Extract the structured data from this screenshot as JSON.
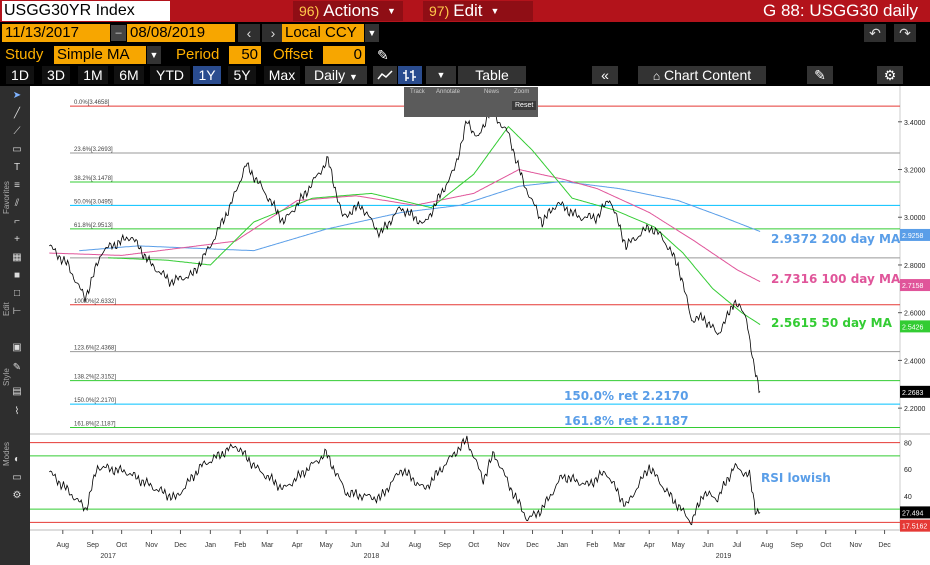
{
  "titlebar": {
    "ticker": "USGG30YR Index",
    "actions_num": "96)",
    "actions_label": "Actions",
    "edit_num": "97)",
    "edit_label": "Edit",
    "right_title": "G 88: USGG30 daily"
  },
  "daterow": {
    "start_date": "11/13/2017",
    "end_date": "08/08/2019",
    "currency": "Local CCY"
  },
  "studyrow": {
    "study_label": "Study",
    "study_value": "Simple MA",
    "period_label": "Period",
    "period_value": "50",
    "offset_label": "Offset",
    "offset_value": "0"
  },
  "rangebar": {
    "ranges": [
      "1D",
      "3D",
      "1M",
      "6M",
      "YTD",
      "1Y",
      "5Y",
      "Max"
    ],
    "selected": "1Y",
    "frequency": "Daily",
    "table_label": "Table",
    "chart_content_label": "Chart Content"
  },
  "sidebar": {
    "favorites_label": "Favorites",
    "edit_label": "Edit",
    "style_label": "Style",
    "modes_label": "Modes"
  },
  "popup": {
    "track": "Track",
    "annotate": "Annotate",
    "news": "News",
    "zoom": "Zoom",
    "reset": "Reset"
  },
  "annotations": {
    "ma200": "2.9372 200 day MA",
    "ma100": "2.7316 100 day MA",
    "ma50": "2.5615 50 day  MA",
    "fib150": "150.0% ret 2.2170",
    "fib1618": "161.8% ret 2.1187",
    "rsi": "RSI lowish"
  },
  "colors": {
    "price": "#000000",
    "ma50": "#33cc33",
    "ma100": "#e0559a",
    "ma200": "#5a9ee8",
    "fib_red": "#e53935",
    "fib_green": "#33cc33",
    "fib_cyan": "#00c0ff",
    "fib_gray": "#999999",
    "titlebar": "#b3131b",
    "field": "#f7a600"
  },
  "chart_data": [
    {
      "type": "line",
      "ylim": [
        2.1,
        3.55
      ],
      "yticks": [
        "3.4000",
        "3.2000",
        "3.0000",
        "2.8000",
        "2.6000",
        "2.4000",
        "2.2000"
      ],
      "price_anchors": [
        [
          "2017-08-01",
          2.88
        ],
        [
          "2017-08-20",
          2.8
        ],
        [
          "2017-09-07",
          2.66
        ],
        [
          "2017-09-25",
          2.86
        ],
        [
          "2017-10-25",
          2.92
        ],
        [
          "2017-11-15",
          2.8
        ],
        [
          "2017-12-05",
          2.73
        ],
        [
          "2017-12-28",
          2.76
        ],
        [
          "2018-01-15",
          2.88
        ],
        [
          "2018-02-05",
          3.05
        ],
        [
          "2018-02-21",
          3.22
        ],
        [
          "2018-03-10",
          3.12
        ],
        [
          "2018-04-01",
          2.98
        ],
        [
          "2018-04-20",
          3.08
        ],
        [
          "2018-05-17",
          3.24
        ],
        [
          "2018-06-01",
          3.0
        ],
        [
          "2018-06-20",
          3.05
        ],
        [
          "2018-07-10",
          2.93
        ],
        [
          "2018-07-31",
          3.04
        ],
        [
          "2018-08-25",
          2.97
        ],
        [
          "2018-09-25",
          3.2
        ],
        [
          "2018-10-08",
          3.4
        ],
        [
          "2018-10-20",
          3.33
        ],
        [
          "2018-11-01",
          3.45
        ],
        [
          "2018-11-20",
          3.35
        ],
        [
          "2018-12-05",
          3.15
        ],
        [
          "2018-12-25",
          2.98
        ],
        [
          "2019-01-10",
          3.06
        ],
        [
          "2019-02-01",
          3.0
        ],
        [
          "2019-02-20",
          3.0
        ],
        [
          "2019-03-05",
          3.08
        ],
        [
          "2019-03-22",
          2.88
        ],
        [
          "2019-04-15",
          2.96
        ],
        [
          "2019-04-28",
          2.92
        ],
        [
          "2019-05-15",
          2.8
        ],
        [
          "2019-05-29",
          2.57
        ],
        [
          "2019-06-10",
          2.58
        ],
        [
          "2019-06-25",
          2.51
        ],
        [
          "2019-07-05",
          2.58
        ],
        [
          "2019-07-12",
          2.65
        ],
        [
          "2019-07-25",
          2.58
        ],
        [
          "2019-08-01",
          2.38
        ],
        [
          "2019-08-08",
          2.27
        ]
      ],
      "ma50_anchors": [
        [
          "2017-10-01",
          2.83
        ],
        [
          "2017-12-01",
          2.82
        ],
        [
          "2018-01-15",
          2.8
        ],
        [
          "2018-03-01",
          2.98
        ],
        [
          "2018-05-01",
          3.08
        ],
        [
          "2018-07-01",
          3.1
        ],
        [
          "2018-09-01",
          3.04
        ],
        [
          "2018-10-15",
          3.18
        ],
        [
          "2018-11-20",
          3.38
        ],
        [
          "2018-12-15",
          3.28
        ],
        [
          "2019-01-25",
          3.08
        ],
        [
          "2019-03-10",
          3.03
        ],
        [
          "2019-04-20",
          2.96
        ],
        [
          "2019-05-20",
          2.85
        ],
        [
          "2019-06-20",
          2.7
        ],
        [
          "2019-07-20",
          2.6
        ],
        [
          "2019-08-08",
          2.55
        ]
      ],
      "ma100_anchors": [
        [
          "2017-08-01",
          2.85
        ],
        [
          "2017-10-15",
          2.84
        ],
        [
          "2018-02-10",
          2.9
        ],
        [
          "2018-04-15",
          3.07
        ],
        [
          "2018-06-15",
          3.09
        ],
        [
          "2018-08-15",
          3.05
        ],
        [
          "2018-10-15",
          3.1
        ],
        [
          "2018-12-01",
          3.2
        ],
        [
          "2019-01-15",
          3.16
        ],
        [
          "2019-02-20",
          3.12
        ],
        [
          "2019-04-15",
          3.02
        ],
        [
          "2019-06-01",
          2.9
        ],
        [
          "2019-07-15",
          2.78
        ],
        [
          "2019-08-08",
          2.73
        ]
      ],
      "ma200_anchors": [
        [
          "2017-09-01",
          2.86
        ],
        [
          "2017-11-01",
          2.88
        ],
        [
          "2018-03-01",
          2.86
        ],
        [
          "2018-05-15",
          2.95
        ],
        [
          "2018-08-01",
          3.02
        ],
        [
          "2018-10-01",
          3.05
        ],
        [
          "2018-12-01",
          3.13
        ],
        [
          "2019-01-15",
          3.15
        ],
        [
          "2019-03-15",
          3.12
        ],
        [
          "2019-05-15",
          3.07
        ],
        [
          "2019-07-01",
          3.0
        ],
        [
          "2019-08-08",
          2.94
        ]
      ],
      "fib_levels": [
        {
          "label": "0.0%[3.4658]",
          "value": 3.4658,
          "color": "red"
        },
        {
          "label": "23.6%[3.2693]",
          "value": 3.2693,
          "color": "gray"
        },
        {
          "label": "38.2%[3.1478]",
          "value": 3.1478,
          "color": "green"
        },
        {
          "label": "50.0%[3.0495]",
          "value": 3.0495,
          "color": "cyan"
        },
        {
          "label": "61.8%[2.9513]",
          "value": 2.9513,
          "color": "green"
        },
        {
          "label": "76.4%",
          "value": 2.8297,
          "color": "gray"
        },
        {
          "label": "100.0%[2.6332]",
          "value": 2.6332,
          "color": "red"
        },
        {
          "label": "123.6%[2.4368]",
          "value": 2.4368,
          "color": "gray"
        },
        {
          "label": "138.2%[2.3152]",
          "value": 2.3152,
          "color": "green"
        },
        {
          "label": "150.0%[2.2170]",
          "value": 2.217,
          "color": "cyan"
        },
        {
          "label": "161.8%[2.1187]",
          "value": 2.1187,
          "color": "green"
        }
      ],
      "right_badges": [
        {
          "value": "2.9258",
          "color": "#5a9ee8"
        },
        {
          "value": "2.7158",
          "color": "#e0559a"
        },
        {
          "value": "2.5426",
          "color": "#33cc33"
        },
        {
          "value": "2.2683",
          "color": "#000000"
        }
      ]
    },
    {
      "type": "line",
      "name": "RSI",
      "ylim": [
        15,
        85
      ],
      "yticks": [
        "80",
        "60",
        "40"
      ],
      "levels": [
        80,
        70,
        30,
        20
      ],
      "anchors": [
        [
          "2017-08-01",
          58
        ],
        [
          "2017-09-08",
          30
        ],
        [
          "2017-09-20",
          62
        ],
        [
          "2017-10-20",
          58
        ],
        [
          "2017-11-20",
          45
        ],
        [
          "2017-12-10",
          38
        ],
        [
          "2018-01-05",
          62
        ],
        [
          "2018-02-10",
          78
        ],
        [
          "2018-03-05",
          60
        ],
        [
          "2018-04-01",
          45
        ],
        [
          "2018-05-15",
          72
        ],
        [
          "2018-06-05",
          42
        ],
        [
          "2018-07-10",
          38
        ],
        [
          "2018-08-01",
          60
        ],
        [
          "2018-08-25",
          45
        ],
        [
          "2018-09-25",
          72
        ],
        [
          "2018-10-08",
          82
        ],
        [
          "2018-10-25",
          52
        ],
        [
          "2018-11-05",
          72
        ],
        [
          "2018-11-25",
          42
        ],
        [
          "2018-12-10",
          22
        ],
        [
          "2018-12-25",
          30
        ],
        [
          "2019-01-15",
          55
        ],
        [
          "2019-02-10",
          48
        ],
        [
          "2019-03-01",
          58
        ],
        [
          "2019-03-22",
          32
        ],
        [
          "2019-04-15",
          62
        ],
        [
          "2019-05-01",
          45
        ],
        [
          "2019-05-29",
          20
        ],
        [
          "2019-06-10",
          42
        ],
        [
          "2019-06-25",
          38
        ],
        [
          "2019-07-12",
          62
        ],
        [
          "2019-07-28",
          55
        ],
        [
          "2019-08-03",
          30
        ],
        [
          "2019-08-08",
          27.5
        ]
      ],
      "right_badges": [
        {
          "value": "27.494",
          "color": "#000000"
        },
        {
          "value": "17.5162",
          "color": "#e53935"
        }
      ]
    }
  ],
  "xaxis": {
    "months": [
      "Aug",
      "Sep",
      "Oct",
      "Nov",
      "Dec",
      "Jan",
      "Feb",
      "Mar",
      "Apr",
      "May",
      "Jun",
      "Jul",
      "Aug",
      "Sep",
      "Oct",
      "Nov",
      "Dec",
      "Jan",
      "Feb",
      "Mar",
      "Apr",
      "May",
      "Jun",
      "Jul",
      "Aug",
      "Sep",
      "Oct",
      "Nov",
      "Dec"
    ],
    "years": [
      "2017",
      "2018",
      "2019"
    ]
  }
}
